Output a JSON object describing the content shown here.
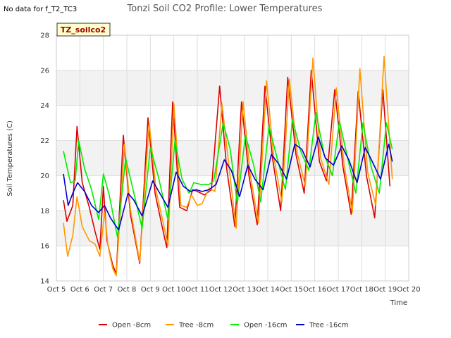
{
  "header": {
    "nodata_label": "No data for f_T2_TC3"
  },
  "site_label": "TZ_soilco2",
  "chart_data": {
    "type": "line",
    "title": "Tonzi Soil CO2 Profile: Lower Temperatures",
    "xlabel": "Time",
    "ylabel": "Soil Temperatures (C)",
    "ylim": [
      14,
      28
    ],
    "xlim": [
      5,
      20
    ],
    "yticks": [
      14,
      16,
      18,
      20,
      22,
      24,
      26,
      28
    ],
    "xticks": [
      {
        "v": 5,
        "label": "Oct 5"
      },
      {
        "v": 6,
        "label": "Oct 6"
      },
      {
        "v": 7,
        "label": "Oct 7"
      },
      {
        "v": 8,
        "label": "Oct 8"
      },
      {
        "v": 9,
        "label": "Oct 9"
      },
      {
        "v": 10,
        "label": "Oct 10"
      },
      {
        "v": 11,
        "label": "Oct 11"
      },
      {
        "v": 12,
        "label": "Oct 12"
      },
      {
        "v": 13,
        "label": "Oct 13"
      },
      {
        "v": 14,
        "label": "Oct 14"
      },
      {
        "v": 15,
        "label": "Oct 15"
      },
      {
        "v": 16,
        "label": "Oct 16"
      },
      {
        "v": 17,
        "label": "Oct 17"
      },
      {
        "v": 18,
        "label": "Oct 18"
      },
      {
        "v": 19,
        "label": "Oct 19"
      },
      {
        "v": 20,
        "label": "Oct 20"
      }
    ],
    "grid": true,
    "legend_position": "bottom",
    "series": [
      {
        "name": "Open -8cm",
        "color": "#dd0000",
        "points": [
          [
            5.3,
            18.6
          ],
          [
            5.45,
            17.4
          ],
          [
            5.7,
            18.3
          ],
          [
            5.88,
            22.8
          ],
          [
            6.1,
            19.6
          ],
          [
            6.4,
            18.2
          ],
          [
            6.65,
            16.8
          ],
          [
            6.85,
            15.8
          ],
          [
            7.0,
            19.4
          ],
          [
            7.15,
            16.3
          ],
          [
            7.4,
            14.9
          ],
          [
            7.55,
            14.4
          ],
          [
            7.85,
            22.3
          ],
          [
            8.15,
            17.8
          ],
          [
            8.55,
            15.0
          ],
          [
            8.9,
            23.3
          ],
          [
            9.2,
            19.0
          ],
          [
            9.55,
            16.8
          ],
          [
            9.7,
            15.9
          ],
          [
            9.95,
            24.2
          ],
          [
            10.25,
            18.2
          ],
          [
            10.55,
            18.0
          ],
          [
            10.8,
            19.2
          ],
          [
            11.0,
            19.1
          ],
          [
            11.3,
            18.9
          ],
          [
            11.6,
            19.2
          ],
          [
            11.95,
            25.1
          ],
          [
            12.25,
            20.4
          ],
          [
            12.6,
            17.1
          ],
          [
            12.88,
            24.2
          ],
          [
            13.2,
            20.0
          ],
          [
            13.55,
            17.2
          ],
          [
            13.88,
            25.1
          ],
          [
            14.2,
            21.0
          ],
          [
            14.55,
            18.0
          ],
          [
            14.85,
            25.6
          ],
          [
            15.2,
            21.2
          ],
          [
            15.55,
            19.0
          ],
          [
            15.85,
            26.0
          ],
          [
            16.2,
            20.8
          ],
          [
            16.5,
            19.7
          ],
          [
            16.85,
            24.9
          ],
          [
            17.2,
            20.5
          ],
          [
            17.55,
            17.8
          ],
          [
            17.85,
            24.8
          ],
          [
            18.2,
            20.0
          ],
          [
            18.55,
            17.6
          ],
          [
            18.9,
            24.9
          ],
          [
            19.2,
            19.4
          ]
        ]
      },
      {
        "name": "Tree -8cm",
        "color": "#ff9900",
        "points": [
          [
            5.3,
            17.3
          ],
          [
            5.48,
            15.4
          ],
          [
            5.7,
            16.6
          ],
          [
            5.88,
            18.8
          ],
          [
            6.1,
            17.1
          ],
          [
            6.4,
            16.3
          ],
          [
            6.65,
            16.1
          ],
          [
            6.85,
            15.4
          ],
          [
            7.05,
            17.9
          ],
          [
            7.2,
            16.0
          ],
          [
            7.4,
            14.7
          ],
          [
            7.55,
            14.3
          ],
          [
            7.9,
            21.8
          ],
          [
            8.15,
            18.1
          ],
          [
            8.55,
            15.1
          ],
          [
            8.95,
            23.0
          ],
          [
            9.25,
            19.1
          ],
          [
            9.55,
            17.3
          ],
          [
            9.75,
            16.0
          ],
          [
            10.0,
            24.1
          ],
          [
            10.3,
            18.3
          ],
          [
            10.55,
            18.2
          ],
          [
            10.75,
            18.9
          ],
          [
            11.0,
            18.3
          ],
          [
            11.2,
            18.4
          ],
          [
            11.5,
            19.3
          ],
          [
            11.75,
            19.1
          ],
          [
            12.05,
            24.1
          ],
          [
            12.35,
            20.5
          ],
          [
            12.65,
            17.0
          ],
          [
            12.95,
            24.2
          ],
          [
            13.25,
            20.1
          ],
          [
            13.6,
            17.3
          ],
          [
            13.95,
            25.4
          ],
          [
            14.25,
            21.1
          ],
          [
            14.6,
            18.5
          ],
          [
            14.92,
            25.5
          ],
          [
            15.25,
            21.3
          ],
          [
            15.6,
            19.4
          ],
          [
            15.92,
            26.7
          ],
          [
            16.25,
            21.0
          ],
          [
            16.6,
            19.5
          ],
          [
            16.92,
            25.0
          ],
          [
            17.25,
            20.6
          ],
          [
            17.6,
            17.9
          ],
          [
            17.92,
            26.1
          ],
          [
            18.25,
            20.2
          ],
          [
            18.6,
            18.3
          ],
          [
            18.95,
            26.8
          ],
          [
            19.3,
            19.8
          ]
        ]
      },
      {
        "name": "Open -16cm",
        "color": "#00ee00",
        "points": [
          [
            5.3,
            21.4
          ],
          [
            5.6,
            19.6
          ],
          [
            5.8,
            19.7
          ],
          [
            5.95,
            22.0
          ],
          [
            6.2,
            20.4
          ],
          [
            6.5,
            19.2
          ],
          [
            6.8,
            17.5
          ],
          [
            7.0,
            20.1
          ],
          [
            7.25,
            18.9
          ],
          [
            7.6,
            16.5
          ],
          [
            7.95,
            21.0
          ],
          [
            8.3,
            19.0
          ],
          [
            8.65,
            17.0
          ],
          [
            9.0,
            21.6
          ],
          [
            9.35,
            19.9
          ],
          [
            9.75,
            17.5
          ],
          [
            10.05,
            22.0
          ],
          [
            10.35,
            19.8
          ],
          [
            10.65,
            19.0
          ],
          [
            10.85,
            19.6
          ],
          [
            11.15,
            19.5
          ],
          [
            11.5,
            19.5
          ],
          [
            11.7,
            19.7
          ],
          [
            12.1,
            23.0
          ],
          [
            12.4,
            21.5
          ],
          [
            12.7,
            18.4
          ],
          [
            13.05,
            22.3
          ],
          [
            13.4,
            20.6
          ],
          [
            13.7,
            18.5
          ],
          [
            14.05,
            22.8
          ],
          [
            14.4,
            21.0
          ],
          [
            14.75,
            19.2
          ],
          [
            15.05,
            23.2
          ],
          [
            15.4,
            21.4
          ],
          [
            15.75,
            20.3
          ],
          [
            16.05,
            23.6
          ],
          [
            16.4,
            21.2
          ],
          [
            16.75,
            20.0
          ],
          [
            17.05,
            23.1
          ],
          [
            17.4,
            21.0
          ],
          [
            17.75,
            19.0
          ],
          [
            18.05,
            23.0
          ],
          [
            18.4,
            20.5
          ],
          [
            18.75,
            19.0
          ],
          [
            19.05,
            23.0
          ],
          [
            19.3,
            21.5
          ]
        ]
      },
      {
        "name": "Tree -16cm",
        "color": "#0000cc",
        "points": [
          [
            5.3,
            20.1
          ],
          [
            5.5,
            18.3
          ],
          [
            5.7,
            19.0
          ],
          [
            5.9,
            19.6
          ],
          [
            6.2,
            19.1
          ],
          [
            6.5,
            18.3
          ],
          [
            6.8,
            17.9
          ],
          [
            7.05,
            18.3
          ],
          [
            7.3,
            17.6
          ],
          [
            7.65,
            16.9
          ],
          [
            8.05,
            19.0
          ],
          [
            8.3,
            18.6
          ],
          [
            8.65,
            17.7
          ],
          [
            9.1,
            19.7
          ],
          [
            9.4,
            19.0
          ],
          [
            9.75,
            18.2
          ],
          [
            10.1,
            20.2
          ],
          [
            10.4,
            19.4
          ],
          [
            10.7,
            19.1
          ],
          [
            10.95,
            19.2
          ],
          [
            11.2,
            19.1
          ],
          [
            11.5,
            19.2
          ],
          [
            11.8,
            19.5
          ],
          [
            12.15,
            20.9
          ],
          [
            12.45,
            20.3
          ],
          [
            12.8,
            18.8
          ],
          [
            13.15,
            20.6
          ],
          [
            13.45,
            19.8
          ],
          [
            13.8,
            19.2
          ],
          [
            14.15,
            21.2
          ],
          [
            14.45,
            20.7
          ],
          [
            14.8,
            19.8
          ],
          [
            15.15,
            21.8
          ],
          [
            15.45,
            21.5
          ],
          [
            15.8,
            20.5
          ],
          [
            16.15,
            22.2
          ],
          [
            16.45,
            21.0
          ],
          [
            16.8,
            20.6
          ],
          [
            17.15,
            21.7
          ],
          [
            17.45,
            20.9
          ],
          [
            17.8,
            19.6
          ],
          [
            18.15,
            21.6
          ],
          [
            18.45,
            20.8
          ],
          [
            18.8,
            19.8
          ],
          [
            19.15,
            21.8
          ],
          [
            19.3,
            20.8
          ]
        ]
      }
    ]
  }
}
